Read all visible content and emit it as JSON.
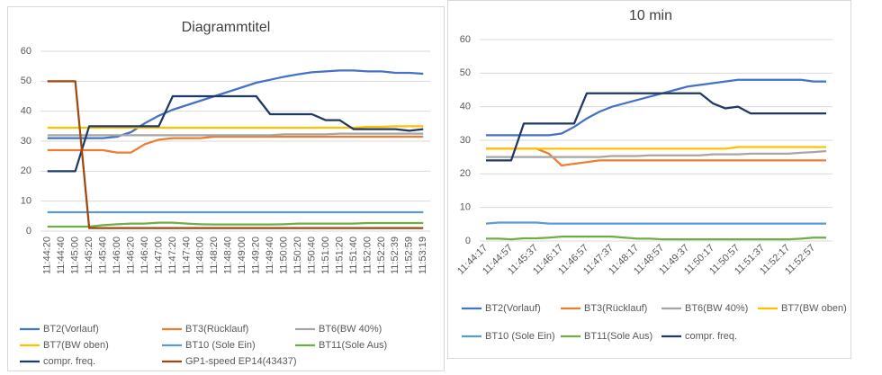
{
  "chart_data": [
    {
      "type": "line",
      "title": "Diagrammtitel",
      "categories": [
        "11:44:20",
        "11:44:40",
        "11:45:00",
        "11:45:20",
        "11:45:40",
        "11:46:00",
        "11:46:20",
        "11:46:40",
        "11:47:00",
        "11:47:20",
        "11:47:40",
        "11:48:00",
        "11:48:20",
        "11:48:40",
        "11:49:00",
        "11:49:20",
        "11:49:40",
        "11:50:00",
        "11:50:20",
        "11:50:40",
        "11:51:00",
        "11:51:20",
        "11:51:40",
        "11:52:00",
        "11:52:20",
        "11:52:39",
        "11:52:59",
        "11:53:19"
      ],
      "ylim": [
        0,
        60
      ],
      "yticks": [
        0,
        10,
        20,
        30,
        40,
        50,
        60
      ],
      "grid": true,
      "legend": "bottom",
      "series": [
        {
          "name": "BT2(Vorlauf)",
          "color": "#4472c4",
          "values": [
            31,
            31,
            31,
            31,
            31,
            31.5,
            33,
            36,
            38.5,
            40.5,
            42,
            43.5,
            45,
            46.5,
            48,
            49.5,
            50.5,
            51.5,
            52.3,
            53,
            53.3,
            53.6,
            53.6,
            53.3,
            53.3,
            52.8,
            52.8,
            52.5
          ]
        },
        {
          "name": "BT3(Rücklauf)",
          "color": "#ed7d31",
          "values": [
            27,
            27,
            27,
            27,
            27,
            26.2,
            26.2,
            29,
            30.5,
            31,
            31,
            31,
            31.5,
            31.5,
            31.5,
            31.5,
            31.5,
            31.5,
            31.5,
            31.5,
            31.5,
            31.5,
            31.5,
            31.5,
            31.5,
            31.5,
            31.5,
            31.5
          ]
        },
        {
          "name": "BT6(BW 40%)",
          "color": "#a5a5a5",
          "values": [
            32,
            32,
            32,
            32,
            32,
            32,
            32,
            32,
            32,
            32,
            32,
            32,
            32,
            32,
            32,
            32,
            32,
            32.3,
            32.3,
            32.3,
            32.3,
            32.5,
            32.5,
            32.5,
            32.5,
            32.5,
            32.5,
            32.5
          ]
        },
        {
          "name": "BT7(BW oben)",
          "color": "#ffc000",
          "values": [
            34.5,
            34.5,
            34.5,
            34.5,
            34.5,
            34.5,
            34.5,
            34.5,
            34.5,
            34.5,
            34.5,
            34.5,
            34.5,
            34.5,
            34.5,
            34.5,
            34.5,
            34.5,
            34.5,
            34.5,
            34.5,
            34.5,
            34.5,
            34.8,
            34.8,
            35,
            35,
            35
          ]
        },
        {
          "name": "BT10 (Sole Ein)",
          "color": "#5b9bd5",
          "values": [
            6.3,
            6.3,
            6.3,
            6.3,
            6.3,
            6.3,
            6.3,
            6.3,
            6.3,
            6.3,
            6.3,
            6.3,
            6.3,
            6.3,
            6.3,
            6.3,
            6.3,
            6.3,
            6.3,
            6.3,
            6.3,
            6.3,
            6.3,
            6.3,
            6.3,
            6.3,
            6.3,
            6.3
          ]
        },
        {
          "name": "BT11(Sole Aus)",
          "color": "#70ad47",
          "values": [
            1.5,
            1.5,
            1.5,
            1.5,
            2,
            2.3,
            2.5,
            2.5,
            2.8,
            2.8,
            2.5,
            2.3,
            2.2,
            2.2,
            2.2,
            2.2,
            2.2,
            2.3,
            2.5,
            2.5,
            2.5,
            2.5,
            2.5,
            2.7,
            2.7,
            2.7,
            2.7,
            2.7
          ]
        },
        {
          "name": "compr. freq.",
          "color": "#203864",
          "values": [
            20,
            20,
            20,
            35,
            35,
            35,
            35,
            35,
            35,
            45,
            45,
            45,
            45,
            45,
            45,
            45,
            39,
            39,
            39,
            39,
            37,
            37,
            34,
            34,
            34,
            34,
            33.5,
            34
          ]
        },
        {
          "name": "GP1-speed EP14(43437)",
          "color": "#9e480e",
          "values": [
            50,
            50,
            50,
            1,
            1,
            1,
            1,
            1,
            1,
            1,
            1,
            1,
            1,
            1,
            1,
            1,
            1,
            1,
            1,
            1,
            1,
            1,
            1,
            1,
            1,
            1,
            1,
            1
          ]
        }
      ]
    },
    {
      "type": "line",
      "title": "10 min",
      "categories": [
        "11:44:17",
        null,
        "11:44:57",
        null,
        "11:45:37",
        null,
        "11:46:17",
        null,
        "11:46:57",
        null,
        "11:47:37",
        null,
        "11:48:17",
        null,
        "11:48:57",
        null,
        "11:49:37",
        null,
        "11:50:17",
        null,
        "11:50:57",
        null,
        "11:51:37",
        null,
        "11:52:17",
        null,
        "11:52:57",
        null
      ],
      "ylim": [
        0,
        60
      ],
      "yticks": [
        0,
        10,
        20,
        30,
        40,
        50,
        60
      ],
      "grid": true,
      "legend": "bottom",
      "series": [
        {
          "name": "BT2(Vorlauf)",
          "color": "#4472c4",
          "values": [
            31.5,
            31.5,
            31.5,
            31.5,
            31.5,
            31.5,
            32,
            34,
            36.5,
            38.5,
            40,
            41,
            42,
            43,
            44,
            45,
            46,
            46.5,
            47,
            47.5,
            48,
            48,
            48,
            48,
            48,
            48,
            47.5,
            47.5
          ]
        },
        {
          "name": "BT3(Rücklauf)",
          "color": "#ed7d31",
          "values": [
            27.5,
            27.5,
            27.5,
            27.5,
            27.5,
            26,
            22.5,
            23,
            23.5,
            24,
            24,
            24,
            24,
            24,
            24,
            24,
            24,
            24,
            24,
            24,
            24,
            24,
            24,
            24,
            24,
            24,
            24,
            24
          ]
        },
        {
          "name": "BT6(BW 40%)",
          "color": "#a5a5a5",
          "values": [
            25,
            25,
            25,
            25,
            25,
            25,
            25,
            25,
            25,
            25,
            25.3,
            25.3,
            25.3,
            25.5,
            25.5,
            25.5,
            25.5,
            25.5,
            25.8,
            25.8,
            25.8,
            26,
            26,
            26,
            26,
            26.3,
            26.5,
            26.8
          ]
        },
        {
          "name": "BT7(BW oben)",
          "color": "#ffc000",
          "values": [
            27.5,
            27.5,
            27.5,
            27.5,
            27.5,
            27.5,
            27.5,
            27.5,
            27.5,
            27.5,
            27.5,
            27.5,
            27.5,
            27.5,
            27.5,
            27.5,
            27.5,
            27.5,
            27.5,
            27.5,
            28,
            28,
            28,
            28,
            28,
            28,
            28,
            28
          ]
        },
        {
          "name": "BT10 (Sole Ein)",
          "color": "#5b9bd5",
          "values": [
            5.2,
            5.5,
            5.5,
            5.5,
            5.5,
            5.2,
            5.2,
            5.2,
            5.2,
            5.2,
            5.2,
            5.2,
            5.2,
            5.2,
            5.2,
            5.2,
            5.2,
            5.2,
            5.2,
            5.2,
            5.2,
            5.2,
            5.2,
            5.2,
            5.2,
            5.2,
            5.2,
            5.2
          ]
        },
        {
          "name": "BT11(Sole Aus)",
          "color": "#70ad47",
          "values": [
            0.7,
            0.7,
            0.5,
            0.8,
            0.8,
            1,
            1.3,
            1.3,
            1.3,
            1.3,
            1.3,
            1,
            0.7,
            0.7,
            0.5,
            0.5,
            0.5,
            0.5,
            0.5,
            0.5,
            0.5,
            0.5,
            0.5,
            0.5,
            0.5,
            0.7,
            1,
            1
          ]
        },
        {
          "name": "compr. freq.",
          "color": "#203864",
          "values": [
            24,
            24,
            24,
            35,
            35,
            35,
            35,
            35,
            44,
            44,
            44,
            44,
            44,
            44,
            44,
            44,
            44,
            44,
            41,
            39.5,
            40,
            38,
            38,
            38,
            38,
            38,
            38,
            38
          ]
        }
      ]
    }
  ]
}
